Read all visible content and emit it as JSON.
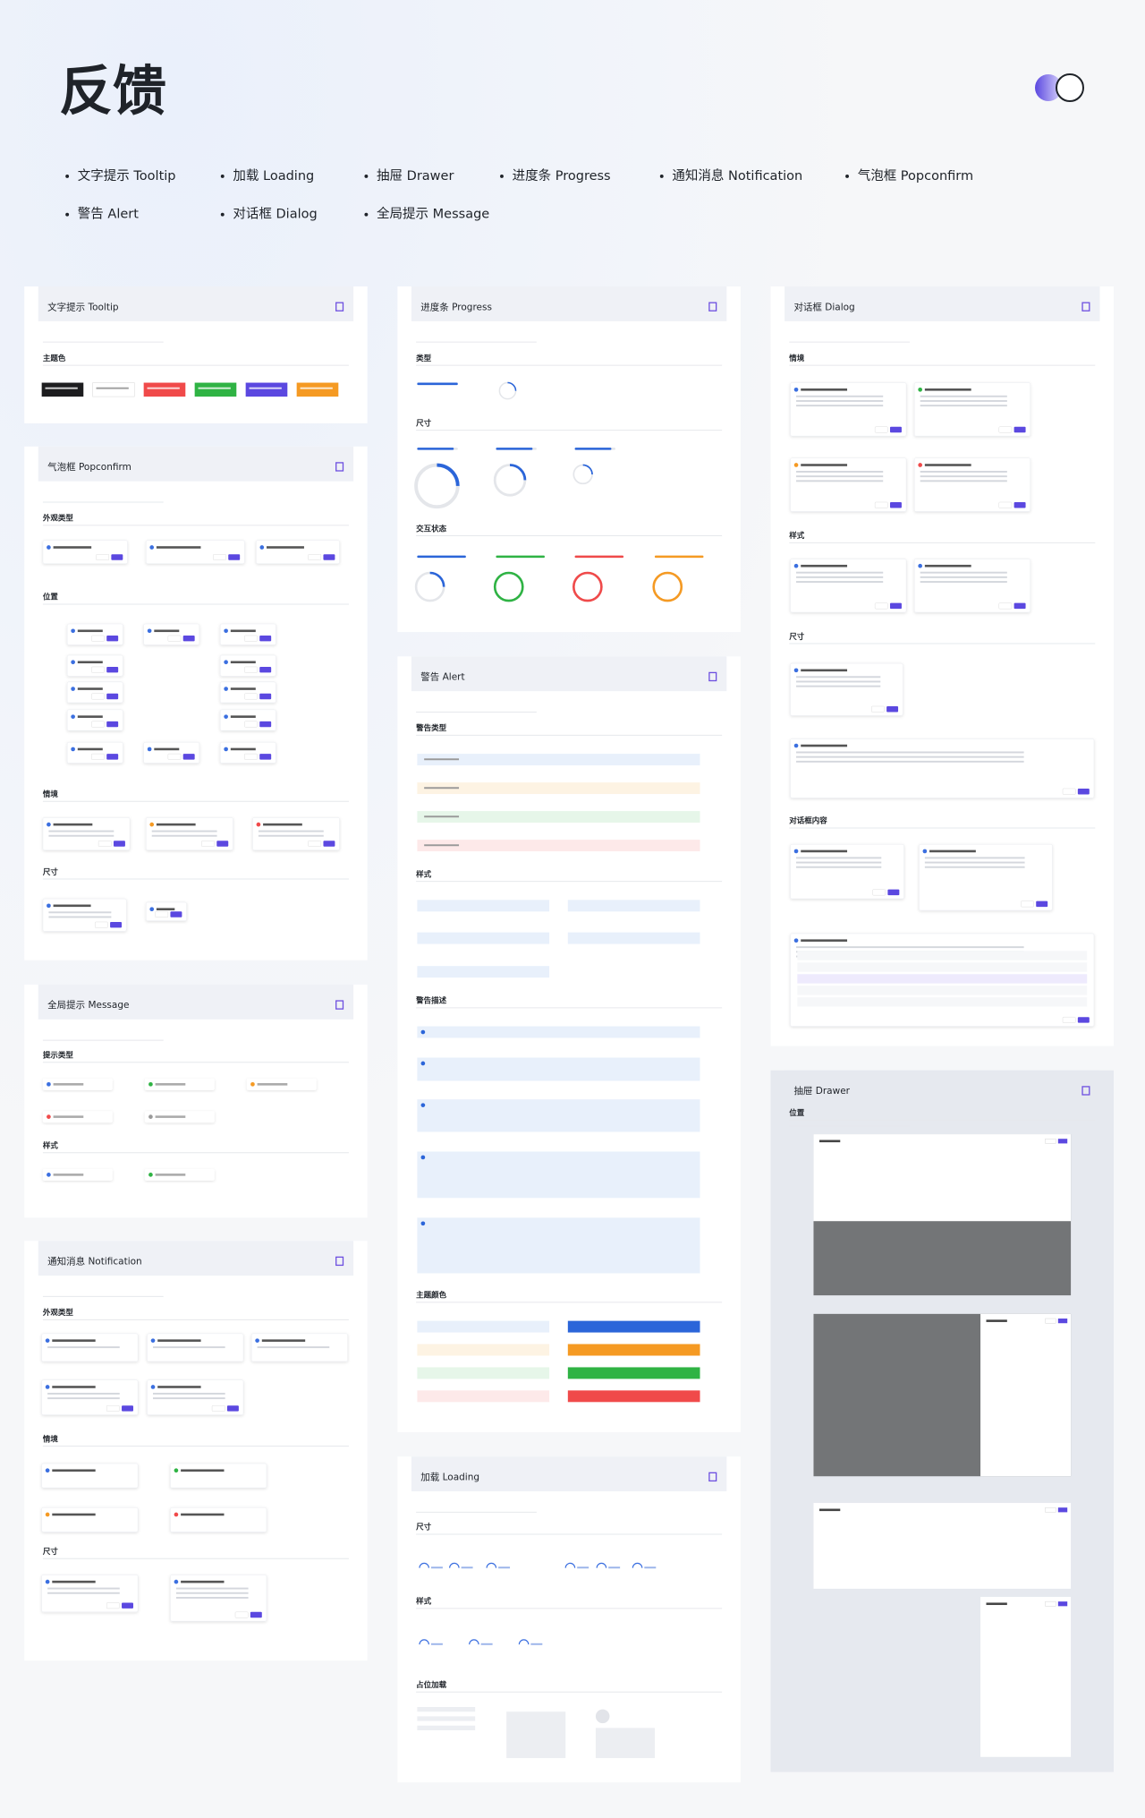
{
  "header": {
    "title": "反馈",
    "nav": [
      "文字提示 Tooltip",
      "加载 Loading",
      "抽屉 Drawer",
      "进度条 Progress",
      "通知消息 Notification",
      "气泡框 Popconfirm",
      "警告 Alert",
      "对话框 Dialog",
      "全局提示 Message"
    ]
  },
  "panels": [
    {
      "title": "文字提示 Tooltip",
      "sections": [
        "主题色"
      ]
    },
    {
      "title": "气泡框 Popconfirm",
      "sections": [
        "外观类型",
        "位置",
        "情境",
        "尺寸"
      ]
    },
    {
      "title": "全局提示 Message",
      "sections": [
        "提示类型",
        "样式"
      ]
    },
    {
      "title": "通知消息 Notification",
      "sections": [
        "外观类型",
        "情境",
        "尺寸"
      ]
    },
    {
      "title": "进度条 Progress",
      "sections": [
        "类型",
        "尺寸",
        "交互状态"
      ]
    },
    {
      "title": "警告 Alert",
      "sections": [
        "警告类型",
        "样式",
        "警告描述",
        "主题颜色"
      ]
    },
    {
      "title": "加载 Loading",
      "sections": [
        "尺寸",
        "样式",
        "占位加载"
      ]
    },
    {
      "title": "对话框 Dialog",
      "sections": [
        "情境",
        "样式",
        "尺寸",
        "对话框内容"
      ]
    },
    {
      "title": "抽屉 Drawer",
      "sections": [
        "位置"
      ]
    }
  ]
}
